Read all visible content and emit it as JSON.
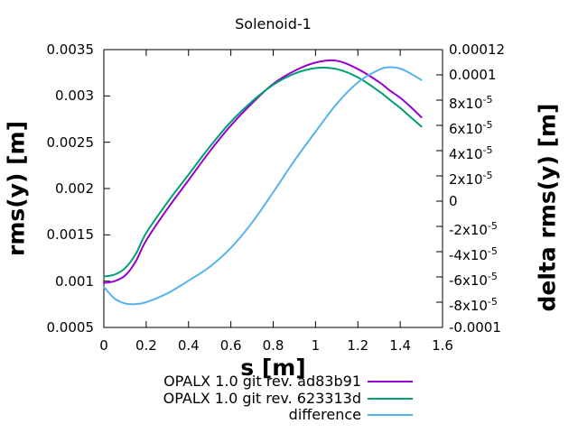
{
  "chart_data": {
    "type": "line",
    "title": "Solenoid-1",
    "xlabel": "s [m]",
    "ylabel": "rms(y) [m]",
    "y2label": "delta rms(y) [m]",
    "grid": false,
    "legend_position": "below-plot-right",
    "background_color": "#ffffff",
    "axis_color": "#000000",
    "x_axis": {
      "min": 0,
      "max": 1.6,
      "ticks": [
        {
          "v": 0,
          "label": "0"
        },
        {
          "v": 0.2,
          "label": "0.2"
        },
        {
          "v": 0.4,
          "label": "0.4"
        },
        {
          "v": 0.6,
          "label": "0.6"
        },
        {
          "v": 0.8,
          "label": "0.8"
        },
        {
          "v": 1,
          "label": "1"
        },
        {
          "v": 1.2,
          "label": "1.2"
        },
        {
          "v": 1.4,
          "label": "1.4"
        },
        {
          "v": 1.6,
          "label": "1.6"
        }
      ]
    },
    "y_axis": {
      "min": 0.0005,
      "max": 0.0035,
      "ticks": [
        {
          "v": 0.0005,
          "label": "0.0005"
        },
        {
          "v": 0.001,
          "label": "0.001"
        },
        {
          "v": 0.0015,
          "label": "0.0015"
        },
        {
          "v": 0.002,
          "label": "0.002"
        },
        {
          "v": 0.0025,
          "label": "0.0025"
        },
        {
          "v": 0.003,
          "label": "0.003"
        },
        {
          "v": 0.0035,
          "label": "0.0035"
        }
      ]
    },
    "y2_axis": {
      "min": -0.0001,
      "max": 0.00012,
      "ticks": [
        {
          "v": -0.0001,
          "label": "-0.0001"
        },
        {
          "v": -8e-05,
          "label": "-8x10^-5"
        },
        {
          "v": -6e-05,
          "label": "-6x10^-5"
        },
        {
          "v": -4e-05,
          "label": "-4x10^-5"
        },
        {
          "v": -2e-05,
          "label": "-2x10^-5"
        },
        {
          "v": 0,
          "label": "0"
        },
        {
          "v": 2e-05,
          "label": "2x10^-5"
        },
        {
          "v": 4e-05,
          "label": "4x10^-5"
        },
        {
          "v": 6e-05,
          "label": "6x10^-5"
        },
        {
          "v": 8e-05,
          "label": "8x10^-5"
        },
        {
          "v": 0.0001,
          "label": "0.0001"
        },
        {
          "v": 0.00012,
          "label": "0.00012"
        }
      ]
    },
    "x": [
      0,
      0.05,
      0.1,
      0.15,
      0.2,
      0.3,
      0.4,
      0.5,
      0.6,
      0.7,
      0.8,
      0.9,
      1,
      1.1,
      1.2,
      1.3,
      1.35,
      1.4,
      1.45,
      1.5
    ],
    "series": [
      {
        "name": "OPALX 1.0 git rev. ad83b91",
        "color": "#9400d3",
        "axis": "y",
        "values": [
          0.00098,
          0.001,
          0.00106,
          0.00121,
          0.00144,
          0.00178,
          0.00209,
          0.0024,
          0.00268,
          0.00292,
          0.00313,
          0.00327,
          0.00336,
          0.00338,
          0.00329,
          0.00315,
          0.00306,
          0.00298,
          0.00288,
          0.00277
        ]
      },
      {
        "name": "OPALX 1.0 git rev. 623313d",
        "color": "#009e73",
        "axis": "y",
        "values": [
          0.00105,
          0.00107,
          0.00114,
          0.00129,
          0.00152,
          0.00185,
          0.00215,
          0.00245,
          0.00272,
          0.00294,
          0.00312,
          0.00324,
          0.0033,
          0.00329,
          0.0032,
          0.00305,
          0.00296,
          0.00287,
          0.00277,
          0.00267
        ]
      },
      {
        "name": "difference",
        "color": "#56b4e9",
        "axis": "y2",
        "values": [
          -6.8e-05,
          -7.7e-05,
          -8.1e-05,
          -8.15e-05,
          -8e-05,
          -7.3e-05,
          -6.3e-05,
          -5.2e-05,
          -3.7e-05,
          -1.7e-05,
          7e-06,
          3.2e-05,
          5.5e-05,
          7.7e-05,
          9.4e-05,
          0.000104,
          0.000106,
          0.000105,
          0.000101,
          9.6e-05
        ]
      }
    ]
  }
}
